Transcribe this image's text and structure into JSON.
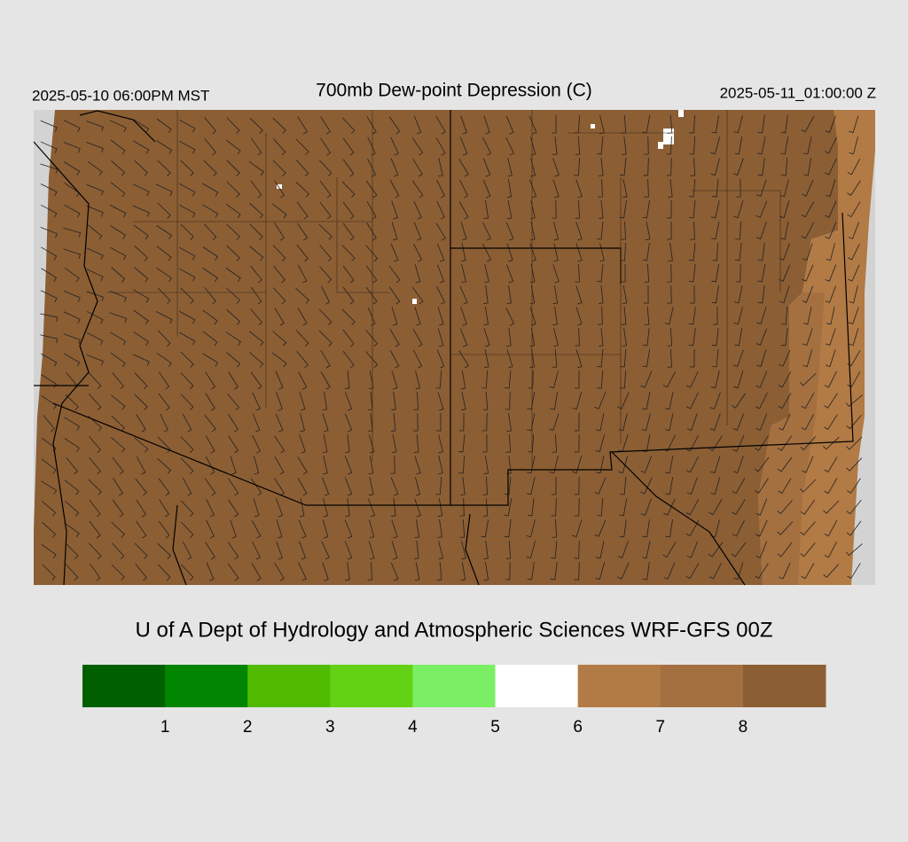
{
  "header": {
    "valid_local": "2025-05-10 06:00PM MST",
    "title": "700mb Dew-point Depression (C)",
    "valid_utc": "2025-05-11_01:00:00 Z"
  },
  "credit": "U of A Dept of Hydrology and Atmospheric Sciences WRF-GFS 00Z",
  "colorbar": {
    "colors": [
      "#006000",
      "#008500",
      "#50bb00",
      "#64d214",
      "#7aee64",
      "#ffffff",
      "#b27a45",
      "#a47040",
      "#8b5e34"
    ],
    "labels": [
      1,
      2,
      3,
      4,
      5,
      6,
      7,
      8
    ]
  }
}
